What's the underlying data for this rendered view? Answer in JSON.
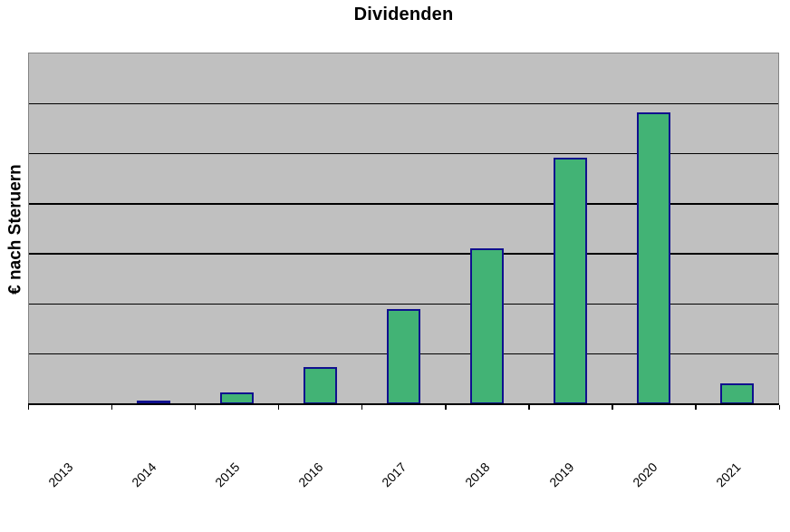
{
  "chart_data": {
    "type": "bar",
    "title": "Dividenden",
    "xlabel": "",
    "ylabel": "€ nach Steruern",
    "categories": [
      "2013",
      "2014",
      "2015",
      "2016",
      "2017",
      "2018",
      "2019",
      "2020",
      "2021"
    ],
    "values": [
      0,
      0.08,
      0.23,
      0.73,
      1.89,
      3.09,
      4.9,
      5.79,
      0.42
    ],
    "value_units": "relative units; 1.0 = one horizontal gridline interval (y-axis shows no numeric tick labels)",
    "ylim": [
      0,
      7
    ],
    "grid": "horizontal, 6 internal gridlines",
    "legend": "none",
    "x_tick_label_rotation_deg": 45,
    "colors": {
      "bar_fill": "#42b375",
      "bar_border": "#10108e",
      "plot_background": "#c0c0c0",
      "gridline": "#000000",
      "plot_border": "#848484",
      "axis_line": "#000000",
      "page_background": "#ffffff",
      "text": "#000000"
    }
  }
}
